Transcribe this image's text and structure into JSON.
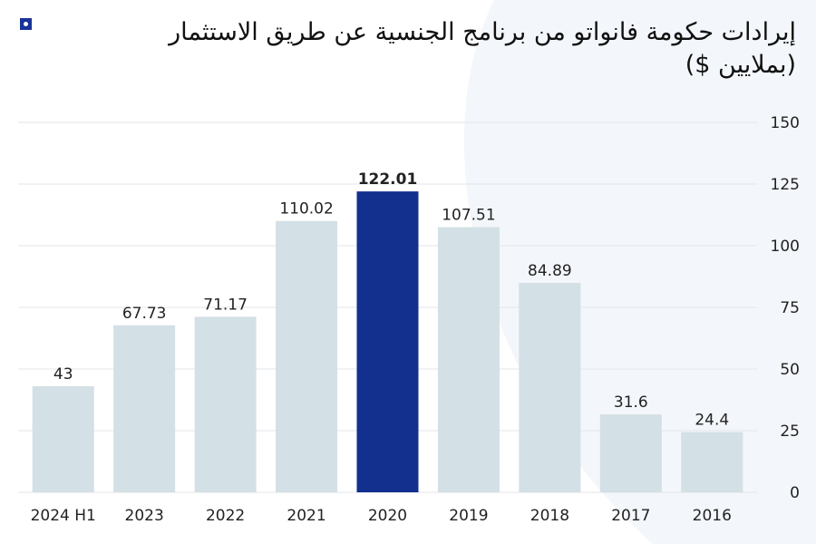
{
  "chart_data": {
    "type": "bar",
    "title": "إيرادات حكومة فانواتو من برنامج الجنسية عن طريق الاستثمار (بملايين $)",
    "categories": [
      "2024 H1",
      "2023",
      "2022",
      "2021",
      "2020",
      "2019",
      "2018",
      "2017",
      "2016"
    ],
    "values": [
      43,
      67.73,
      71.17,
      110.02,
      122.01,
      107.51,
      84.89,
      31.6,
      24.4
    ],
    "labels": [
      "43",
      "67.73",
      "71.17",
      "110.02",
      "122.01",
      "107.51",
      "84.89",
      "31.6",
      "24.4"
    ],
    "highlight": "2020",
    "ylim": [
      0,
      150
    ],
    "yticks": [
      0,
      25,
      50,
      75,
      100,
      125,
      150
    ],
    "yaxis_position": "right",
    "grid": true,
    "colors": {
      "bar": "#d3e0e6",
      "highlight": "#13308f",
      "grid": "#e3e6ea",
      "logo": "#1a3399"
    }
  }
}
